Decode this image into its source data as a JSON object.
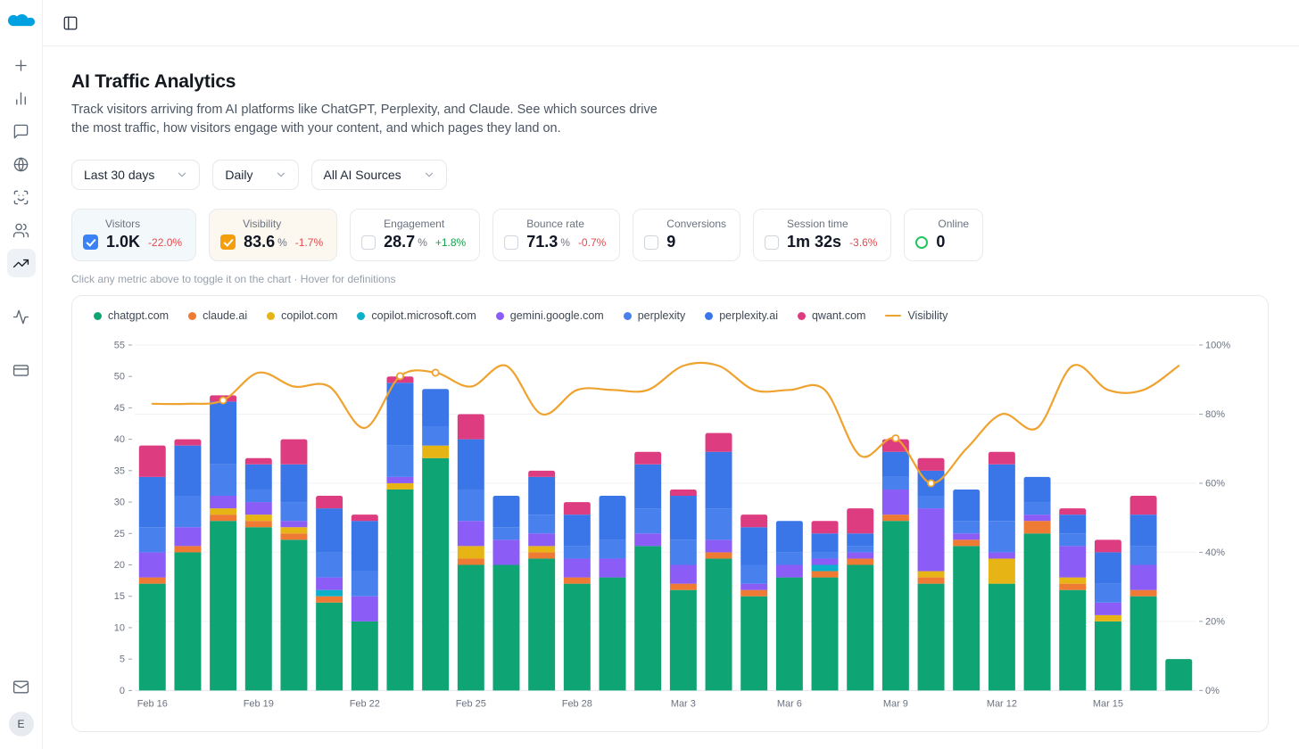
{
  "sidebar": {
    "logo": "cloud-logo",
    "items": [
      {
        "name": "new",
        "icon": "plus-icon"
      },
      {
        "name": "analytics",
        "icon": "bar-chart-icon"
      },
      {
        "name": "messages",
        "icon": "message-square-icon"
      },
      {
        "name": "web",
        "icon": "globe-icon"
      },
      {
        "name": "identity",
        "icon": "scan-face-icon"
      },
      {
        "name": "audience",
        "icon": "users-icon"
      },
      {
        "name": "ai-traffic",
        "icon": "trending-up-icon",
        "active": true
      },
      {
        "name": "activity",
        "icon": "activity-icon"
      },
      {
        "name": "billing",
        "icon": "credit-card-icon"
      },
      {
        "name": "inbox",
        "icon": "mail-icon"
      }
    ],
    "avatar_initial": "E"
  },
  "topbar": {
    "toggle_icon": "panel-left-icon"
  },
  "header": {
    "title": "AI Traffic Analytics",
    "description": "Track visitors arriving from AI platforms like ChatGPT, Perplexity, and Claude. See which sources drive the most traffic, how visitors engage with your content, and which pages they land on."
  },
  "filters": {
    "date_range": "Last 30 days",
    "granularity": "Daily",
    "source": "All AI Sources"
  },
  "colors": {
    "positive": "#16a34a",
    "negative": "#e5484d"
  },
  "metrics": {
    "hint": "Click any metric above to toggle it on the chart · Hover for definitions",
    "cards": [
      {
        "label": "Visitors",
        "value": "1.0K",
        "suffix": "",
        "delta": "-22.0%",
        "trend": "down",
        "state": "checked",
        "accent": "#3b82f6",
        "bg": "#f3f8fb"
      },
      {
        "label": "Visibility",
        "value": "83.6",
        "suffix": "%",
        "delta": "-1.7%",
        "trend": "down",
        "state": "checked",
        "accent": "#f59e0b",
        "bg": "#fdf8ef"
      },
      {
        "label": "Engagement",
        "value": "28.7",
        "suffix": "%",
        "delta": "+1.8%",
        "trend": "up",
        "state": "unchecked",
        "accent": "",
        "bg": ""
      },
      {
        "label": "Bounce rate",
        "value": "71.3",
        "suffix": "%",
        "delta": "-0.7%",
        "trend": "down",
        "state": "unchecked",
        "accent": "",
        "bg": ""
      },
      {
        "label": "Conversions",
        "value": "9",
        "suffix": "",
        "delta": "",
        "trend": "",
        "state": "unchecked",
        "accent": "",
        "bg": ""
      },
      {
        "label": "Session time",
        "value": "1m 32s",
        "suffix": "",
        "delta": "-3.6%",
        "trend": "down",
        "state": "unchecked",
        "accent": "",
        "bg": ""
      },
      {
        "label": "Online",
        "value": "0",
        "suffix": "",
        "delta": "",
        "trend": "",
        "state": "online",
        "accent": "#22c55e",
        "bg": ""
      }
    ]
  },
  "chart_data": {
    "type": "stacked-bar+line",
    "x": [
      "Feb 16",
      "Feb 17",
      "Feb 18",
      "Feb 19",
      "Feb 20",
      "Feb 21",
      "Feb 22",
      "Feb 23",
      "Feb 24",
      "Feb 25",
      "Feb 26",
      "Feb 27",
      "Feb 28",
      "Mar 1",
      "Mar 2",
      "Mar 3",
      "Mar 4",
      "Mar 5",
      "Mar 6",
      "Mar 7",
      "Mar 8",
      "Mar 9",
      "Mar 10",
      "Mar 11",
      "Mar 12",
      "Mar 13",
      "Mar 14",
      "Mar 15",
      "Mar 16",
      "Mar 17"
    ],
    "x_label_every": 3,
    "left_axis": {
      "min": 0,
      "max": 55,
      "step": 5
    },
    "right_axis": {
      "min": 0,
      "max": 100,
      "step": 20,
      "suffix": "%"
    },
    "series": [
      {
        "name": "chatgpt.com",
        "color": "#0ea473",
        "values": [
          17,
          22,
          27,
          26,
          24,
          14,
          11,
          32,
          37,
          20,
          20,
          21,
          17,
          18,
          23,
          16,
          21,
          15,
          18,
          18,
          20,
          27,
          17,
          23,
          17,
          25,
          16,
          11,
          15,
          5
        ]
      },
      {
        "name": "claude.ai",
        "color": "#ee7a33",
        "values": [
          1,
          1,
          1,
          1,
          1,
          1,
          0,
          0,
          0,
          1,
          0,
          1,
          1,
          0,
          0,
          1,
          1,
          1,
          0,
          1,
          1,
          1,
          1,
          1,
          0,
          2,
          1,
          0,
          1,
          0
        ]
      },
      {
        "name": "copilot.com",
        "color": "#e7b416",
        "values": [
          0,
          0,
          1,
          1,
          1,
          0,
          0,
          1,
          2,
          2,
          0,
          1,
          0,
          0,
          0,
          0,
          0,
          0,
          0,
          0,
          0,
          0,
          1,
          0,
          4,
          0,
          1,
          1,
          0,
          0
        ]
      },
      {
        "name": "copilot.microsoft.com",
        "color": "#0cb0c9",
        "values": [
          0,
          0,
          0,
          0,
          0,
          1,
          0,
          0,
          0,
          0,
          0,
          0,
          0,
          0,
          0,
          0,
          0,
          0,
          0,
          1,
          0,
          0,
          0,
          0,
          0,
          0,
          0,
          0,
          0,
          0
        ]
      },
      {
        "name": "gemini.google.com",
        "color": "#8b5cf6",
        "values": [
          4,
          3,
          2,
          2,
          1,
          2,
          4,
          1,
          0,
          4,
          4,
          2,
          3,
          3,
          2,
          3,
          2,
          1,
          2,
          1,
          1,
          4,
          10,
          1,
          1,
          1,
          5,
          2,
          4,
          0
        ]
      },
      {
        "name": "perplexity",
        "color": "#4880ee",
        "values": [
          4,
          5,
          5,
          2,
          3,
          4,
          4,
          5,
          3,
          5,
          2,
          3,
          2,
          3,
          4,
          4,
          5,
          3,
          2,
          1,
          1,
          2,
          2,
          2,
          5,
          2,
          2,
          3,
          3,
          0
        ]
      },
      {
        "name": "perplexity.ai",
        "color": "#3b76e8",
        "values": [
          8,
          8,
          10,
          4,
          6,
          7,
          8,
          10,
          6,
          8,
          5,
          6,
          5,
          7,
          7,
          7,
          9,
          6,
          5,
          3,
          2,
          4,
          4,
          5,
          9,
          4,
          3,
          5,
          5,
          0
        ]
      },
      {
        "name": "qwant.com",
        "color": "#dd3d80",
        "values": [
          5,
          1,
          1,
          1,
          4,
          2,
          1,
          1,
          0,
          4,
          0,
          1,
          2,
          0,
          2,
          1,
          3,
          2,
          0,
          2,
          4,
          2,
          2,
          0,
          2,
          0,
          1,
          2,
          3,
          0
        ]
      }
    ],
    "line": {
      "name": "Visibility",
      "color": "#efa22e",
      "values": [
        83,
        83,
        84,
        92,
        88,
        88,
        76,
        91,
        92,
        88,
        94,
        80,
        87,
        87,
        87,
        94,
        94,
        87,
        87,
        87,
        68,
        73,
        60,
        70,
        80,
        76,
        94,
        87,
        87,
        94
      ],
      "dot_indices": [
        2,
        7,
        8,
        21,
        22
      ]
    }
  }
}
